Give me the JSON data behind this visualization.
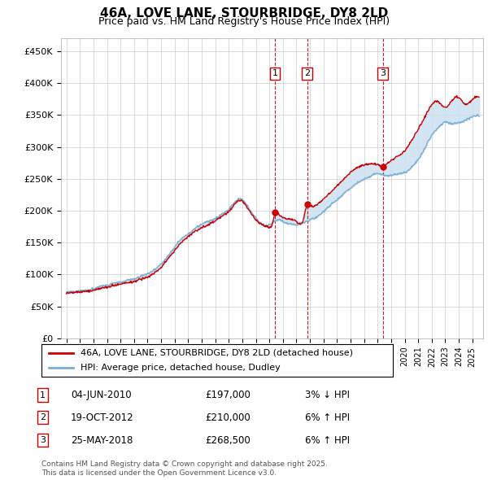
{
  "title": "46A, LOVE LANE, STOURBRIDGE, DY8 2LD",
  "subtitle": "Price paid vs. HM Land Registry's House Price Index (HPI)",
  "legend_line1": "46A, LOVE LANE, STOURBRIDGE, DY8 2LD (detached house)",
  "legend_line2": "HPI: Average price, detached house, Dudley",
  "footer": "Contains HM Land Registry data © Crown copyright and database right 2025.\nThis data is licensed under the Open Government Licence v3.0.",
  "ylim": [
    0,
    470000
  ],
  "yticks": [
    0,
    50000,
    100000,
    150000,
    200000,
    250000,
    300000,
    350000,
    400000,
    450000
  ],
  "ytick_labels": [
    "£0",
    "£50K",
    "£100K",
    "£150K",
    "£200K",
    "£250K",
    "£300K",
    "£350K",
    "£400K",
    "£450K"
  ],
  "xlim_start": 1994.6,
  "xlim_end": 2025.8,
  "hpi_color": "#7aaed4",
  "price_color": "#cc0000",
  "sale_color": "#cc0000",
  "vline_color": "#cc0000",
  "shaded_color": "#cce0f0",
  "transactions": [
    {
      "id": 1,
      "date": "04-JUN-2010",
      "year": 2010.42,
      "price": 197000,
      "pct": "3%",
      "dir": "↓"
    },
    {
      "id": 2,
      "date": "19-OCT-2012",
      "year": 2012.8,
      "price": 210000,
      "pct": "6%",
      "dir": "↑"
    },
    {
      "id": 3,
      "date": "25-MAY-2018",
      "year": 2018.39,
      "price": 268500,
      "pct": "6%",
      "dir": "↑"
    }
  ],
  "hpi_knots": [
    [
      1995.0,
      72000
    ],
    [
      1995.5,
      72500
    ],
    [
      1996.0,
      73500
    ],
    [
      1996.5,
      75000
    ],
    [
      1997.0,
      77000
    ],
    [
      1997.5,
      80000
    ],
    [
      1998.0,
      82000
    ],
    [
      1998.5,
      85000
    ],
    [
      1999.0,
      87000
    ],
    [
      1999.5,
      90000
    ],
    [
      2000.0,
      92000
    ],
    [
      2000.5,
      96000
    ],
    [
      2001.0,
      100000
    ],
    [
      2001.5,
      106000
    ],
    [
      2002.0,
      115000
    ],
    [
      2002.5,
      128000
    ],
    [
      2003.0,
      142000
    ],
    [
      2003.5,
      155000
    ],
    [
      2004.0,
      163000
    ],
    [
      2004.5,
      172000
    ],
    [
      2005.0,
      178000
    ],
    [
      2005.5,
      183000
    ],
    [
      2006.0,
      188000
    ],
    [
      2006.5,
      195000
    ],
    [
      2007.0,
      202000
    ],
    [
      2007.5,
      215000
    ],
    [
      2008.0,
      218000
    ],
    [
      2008.3,
      210000
    ],
    [
      2008.8,
      195000
    ],
    [
      2009.3,
      183000
    ],
    [
      2009.8,
      178000
    ],
    [
      2010.2,
      182000
    ],
    [
      2010.7,
      188000
    ],
    [
      2011.0,
      185000
    ],
    [
      2011.5,
      182000
    ],
    [
      2012.0,
      180000
    ],
    [
      2012.5,
      183000
    ],
    [
      2013.0,
      187000
    ],
    [
      2013.5,
      192000
    ],
    [
      2014.0,
      200000
    ],
    [
      2014.5,
      210000
    ],
    [
      2015.0,
      218000
    ],
    [
      2015.5,
      228000
    ],
    [
      2016.0,
      237000
    ],
    [
      2016.5,
      245000
    ],
    [
      2017.0,
      250000
    ],
    [
      2017.5,
      255000
    ],
    [
      2018.0,
      258000
    ],
    [
      2018.5,
      255000
    ],
    [
      2019.0,
      255000
    ],
    [
      2019.5,
      258000
    ],
    [
      2020.0,
      260000
    ],
    [
      2020.5,
      268000
    ],
    [
      2021.0,
      280000
    ],
    [
      2021.5,
      298000
    ],
    [
      2022.0,
      318000
    ],
    [
      2022.5,
      330000
    ],
    [
      2023.0,
      338000
    ],
    [
      2023.5,
      335000
    ],
    [
      2024.0,
      337000
    ],
    [
      2024.5,
      342000
    ],
    [
      2025.0,
      348000
    ],
    [
      2025.5,
      350000
    ]
  ],
  "price_knots": [
    [
      1995.0,
      70000
    ],
    [
      1995.5,
      71000
    ],
    [
      1996.0,
      72000
    ],
    [
      1996.5,
      73500
    ],
    [
      1997.0,
      75500
    ],
    [
      1997.5,
      78000
    ],
    [
      1998.0,
      80000
    ],
    [
      1998.5,
      83000
    ],
    [
      1999.0,
      85500
    ],
    [
      1999.5,
      88000
    ],
    [
      2000.0,
      90500
    ],
    [
      2000.5,
      94500
    ],
    [
      2001.0,
      98500
    ],
    [
      2001.5,
      105000
    ],
    [
      2002.0,
      114000
    ],
    [
      2002.5,
      127000
    ],
    [
      2003.0,
      140000
    ],
    [
      2003.5,
      153000
    ],
    [
      2004.0,
      162000
    ],
    [
      2004.5,
      170000
    ],
    [
      2005.0,
      176000
    ],
    [
      2005.5,
      181000
    ],
    [
      2006.0,
      186000
    ],
    [
      2006.5,
      193000
    ],
    [
      2007.0,
      200000
    ],
    [
      2007.5,
      213000
    ],
    [
      2008.0,
      216000
    ],
    [
      2008.3,
      208000
    ],
    [
      2008.8,
      193000
    ],
    [
      2009.3,
      181000
    ],
    [
      2009.8,
      176000
    ],
    [
      2010.2,
      180000
    ],
    [
      2010.42,
      197000
    ],
    [
      2010.7,
      196000
    ],
    [
      2011.0,
      190000
    ],
    [
      2011.5,
      187000
    ],
    [
      2012.0,
      184000
    ],
    [
      2012.5,
      187000
    ],
    [
      2012.8,
      210000
    ],
    [
      2013.0,
      208000
    ],
    [
      2013.5,
      210000
    ],
    [
      2014.0,
      218000
    ],
    [
      2014.5,
      228000
    ],
    [
      2015.0,
      238000
    ],
    [
      2015.5,
      248000
    ],
    [
      2016.0,
      258000
    ],
    [
      2016.5,
      266000
    ],
    [
      2017.0,
      270000
    ],
    [
      2017.5,
      272000
    ],
    [
      2018.0,
      270000
    ],
    [
      2018.39,
      268500
    ],
    [
      2018.8,
      275000
    ],
    [
      2019.0,
      278000
    ],
    [
      2019.5,
      285000
    ],
    [
      2020.0,
      292000
    ],
    [
      2020.5,
      308000
    ],
    [
      2021.0,
      325000
    ],
    [
      2021.5,
      345000
    ],
    [
      2022.0,
      363000
    ],
    [
      2022.5,
      368000
    ],
    [
      2023.0,
      360000
    ],
    [
      2023.5,
      370000
    ],
    [
      2024.0,
      375000
    ],
    [
      2024.5,
      365000
    ],
    [
      2025.0,
      372000
    ],
    [
      2025.5,
      375000
    ]
  ]
}
